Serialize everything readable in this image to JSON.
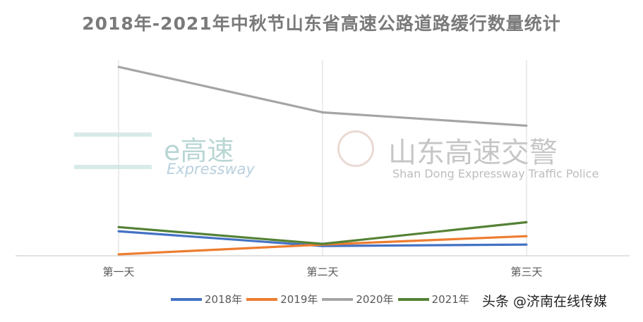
{
  "chart_data": {
    "type": "line",
    "title": "2018年-2021年中秋节山东省高速公路道路缓行数量统计",
    "categories": [
      "第一天",
      "第二天",
      "第三天"
    ],
    "series": [
      {
        "name": "2018年",
        "values": [
          35,
          14,
          16
        ],
        "color": "#4472c4"
      },
      {
        "name": "2019年",
        "values": [
          2,
          16,
          28
        ],
        "color": "#ed7d31"
      },
      {
        "name": "2020年",
        "values": [
          270,
          205,
          186
        ],
        "color": "#a5a5a5"
      },
      {
        "name": "2021年",
        "values": [
          41,
          17,
          48
        ],
        "color": "#548235"
      }
    ],
    "ylim": [
      0,
      275
    ],
    "y_axis_labels_shown": false,
    "grid": "vertical",
    "legend": "bottom"
  },
  "watermarks": {
    "left_logo": "e高速",
    "left_sub": "Expressway",
    "right_logo": "山东高速交警",
    "right_sub": "Shan Dong Expressway Traffic Police"
  },
  "credit": "头条 @济南在线传媒"
}
